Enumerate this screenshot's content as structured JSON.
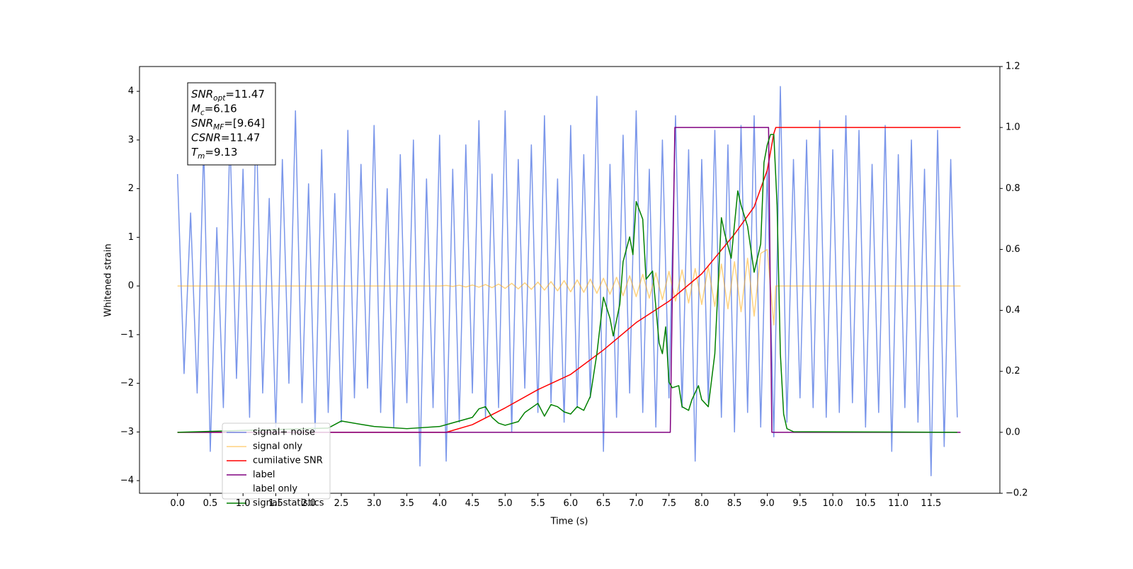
{
  "chart_data": {
    "type": "line",
    "xlabel": "Time (s)",
    "ylabel": "Whitened strain",
    "xlim": [
      -0.58,
      12.55
    ],
    "ylim": [
      -4.26,
      4.51
    ],
    "y2lim": [
      -0.2,
      1.2
    ],
    "xticks": [
      {
        "value": 0,
        "label": "0.0"
      },
      0.5,
      {
        "value": 1,
        "label": "1.0"
      },
      1.5,
      {
        "value": 2,
        "label": "2.0"
      },
      2.5,
      {
        "value": 3,
        "label": "3.0"
      },
      3.5,
      {
        "value": 4,
        "label": "4.0"
      },
      4.5,
      {
        "value": 5,
        "label": "5.0"
      },
      5.5,
      {
        "value": 6,
        "label": "6.0"
      },
      6.5,
      {
        "value": 7,
        "label": "7.0"
      },
      7.5,
      {
        "value": 8,
        "label": "8.0"
      },
      8.5,
      {
        "value": 9,
        "label": "9.0"
      },
      9.5,
      {
        "value": 10,
        "label": "10.0"
      },
      10.5,
      {
        "value": 11,
        "label": "11.0"
      },
      11.5
    ],
    "yticks": [
      {
        "value": -4,
        "label": "−4"
      },
      {
        "value": -3,
        "label": "−3"
      },
      {
        "value": -2,
        "label": "−2"
      },
      {
        "value": -1,
        "label": "−1"
      },
      0,
      1,
      2,
      3,
      4
    ],
    "y2ticks": [
      {
        "value": -0.2,
        "label": "−0.2"
      },
      {
        "value": 0,
        "label": "0.0"
      },
      0.2,
      0.4,
      0.6,
      0.8,
      {
        "value": 1,
        "label": "1.0"
      },
      1.2
    ],
    "legend": "lower left",
    "annotation": [
      {
        "symbol": "SNR",
        "sub": "opt",
        "text": "=11.47"
      },
      {
        "symbol": "M",
        "sub": "c",
        "text": "=6.16"
      },
      {
        "symbol": "SNR",
        "sub": "MF",
        "text": "=[9.64]"
      },
      {
        "symbol": "CSNR",
        "text": "=11.47"
      },
      {
        "symbol": "T",
        "sub": "m",
        "text": "=9.13"
      }
    ],
    "series": [
      {
        "name": "signal+ noise",
        "color": "#4169e1",
        "alpha": 0.7,
        "x": [
          0,
          0.1,
          0.2,
          0.3,
          0.4,
          0.5,
          0.6,
          0.7,
          0.8,
          0.9,
          1,
          1.1,
          1.2,
          1.3,
          1.4,
          1.5,
          1.6,
          1.7,
          1.8,
          1.9,
          2,
          2.1,
          2.2,
          2.3,
          2.4,
          2.5,
          2.6,
          2.7,
          2.8,
          2.9,
          3,
          3.1,
          3.2,
          3.3,
          3.4,
          3.5,
          3.6,
          3.7,
          3.8,
          3.9,
          4,
          4.1,
          4.2,
          4.3,
          4.4,
          4.5,
          4.6,
          4.7,
          4.8,
          4.9,
          5,
          5.1,
          5.2,
          5.3,
          5.4,
          5.5,
          5.6,
          5.7,
          5.8,
          5.9,
          6,
          6.1,
          6.2,
          6.3,
          6.4,
          6.5,
          6.6,
          6.7,
          6.8,
          6.9,
          7,
          7.1,
          7.2,
          7.3,
          7.4,
          7.5,
          7.6,
          7.7,
          7.8,
          7.9,
          8,
          8.1,
          8.2,
          8.3,
          8.4,
          8.5,
          8.6,
          8.7,
          8.8,
          8.9,
          9,
          9.1,
          9.2,
          9.3,
          9.4,
          9.5,
          9.6,
          9.7,
          9.8,
          9.9,
          10,
          10.1,
          10.2,
          10.3,
          10.4,
          10.5,
          10.6,
          10.7,
          10.8,
          10.9,
          11,
          11.1,
          11.2,
          11.3,
          11.4,
          11.5,
          11.6,
          11.7,
          11.8,
          11.9
        ],
        "values": [
          2.3,
          -1.8,
          1.5,
          -2.2,
          2.9,
          -3.4,
          1.2,
          -2.5,
          3.1,
          -1.9,
          2.4,
          -2.7,
          3.5,
          -2.2,
          1.8,
          -2.9,
          2.6,
          -2.0,
          3.6,
          -2.4,
          2.1,
          -3.0,
          2.8,
          -2.6,
          1.9,
          -2.8,
          3.2,
          -2.3,
          2.5,
          -2.1,
          3.3,
          -2.6,
          2.0,
          -2.9,
          2.7,
          -2.4,
          3.0,
          -3.7,
          2.2,
          -2.5,
          3.1,
          -3.6,
          2.4,
          -2.8,
          2.9,
          -2.2,
          3.4,
          -2.7,
          2.3,
          -2.5,
          3.6,
          -3.0,
          2.6,
          -2.1,
          2.9,
          -2.6,
          3.5,
          -2.4,
          2.2,
          -2.8,
          3.3,
          -2.5,
          2.7,
          -2.3,
          3.9,
          -3.4,
          2.5,
          -2.7,
          3.1,
          -2.2,
          3.6,
          -2.6,
          2.4,
          -2.9,
          3.0,
          -2.3,
          3.5,
          -2.5,
          2.8,
          -3.6,
          2.6,
          -2.4,
          3.2,
          -2.7,
          2.9,
          -3.0,
          3.3,
          -2.6,
          3.5,
          -2.9,
          2.4,
          -3.1,
          4.1,
          -2.8,
          2.6,
          -2.3,
          3.0,
          -2.5,
          3.4,
          -2.7,
          2.8,
          -2.6,
          3.5,
          -2.4,
          3.2,
          -2.9,
          2.5,
          -2.6,
          3.3,
          -3.4,
          2.7,
          -2.5,
          3.0,
          -2.8,
          2.4,
          -3.9,
          3.2,
          -3.3,
          2.6,
          -2.7
        ]
      },
      {
        "name": "signal only",
        "color": "#ffa500",
        "alpha": 0.5,
        "x": [
          0,
          4,
          4.1,
          4.2,
          4.3,
          4.4,
          4.5,
          4.6,
          4.7,
          4.8,
          4.9,
          5,
          5.1,
          5.2,
          5.3,
          5.4,
          5.5,
          5.6,
          5.7,
          5.8,
          5.9,
          6,
          6.1,
          6.2,
          6.3,
          6.4,
          6.5,
          6.6,
          6.7,
          6.8,
          6.9,
          7,
          7.1,
          7.2,
          7.3,
          7.4,
          7.5,
          7.6,
          7.7,
          7.8,
          7.9,
          8,
          8.1,
          8.2,
          8.3,
          8.4,
          8.5,
          8.6,
          8.7,
          8.8,
          8.9,
          9,
          9.1,
          9.13,
          11.95
        ],
        "values": [
          0,
          0,
          0.01,
          -0.01,
          0.015,
          -0.02,
          0.02,
          -0.025,
          0.03,
          -0.035,
          0.04,
          -0.05,
          0.055,
          -0.06,
          0.065,
          -0.07,
          0.08,
          -0.085,
          0.09,
          -0.1,
          0.11,
          -0.12,
          0.125,
          -0.13,
          0.14,
          -0.15,
          0.16,
          -0.17,
          0.18,
          -0.2,
          0.21,
          -0.22,
          0.24,
          -0.25,
          0.27,
          -0.28,
          0.3,
          -0.31,
          0.33,
          -0.35,
          0.36,
          -0.38,
          0.4,
          -0.42,
          0.45,
          -0.47,
          0.5,
          -0.53,
          0.57,
          -0.62,
          0.67,
          0.75,
          -0.8,
          0,
          0
        ]
      },
      {
        "name": "cumilative SNR",
        "color": "#ff0000",
        "axis": "y2",
        "x": [
          0,
          4.1,
          4.5,
          5,
          5.5,
          6,
          6.5,
          7,
          7.5,
          8,
          8.5,
          8.8,
          9,
          9.1,
          9.13,
          11.95
        ],
        "values": [
          0,
          0,
          0.025,
          0.08,
          0.14,
          0.19,
          0.27,
          0.36,
          0.43,
          0.52,
          0.65,
          0.74,
          0.86,
          0.98,
          1,
          1
        ]
      },
      {
        "name": "label",
        "color": "#800080",
        "axis": "y2",
        "x": [
          0,
          7.52,
          7.59,
          9.02,
          9.07,
          11.95
        ],
        "values": [
          0,
          0,
          1,
          1,
          0,
          0
        ]
      },
      {
        "name": "label only",
        "color": "#ffffff",
        "axis": "y2",
        "x": [],
        "values": []
      },
      {
        "name": "signal statistics",
        "color": "#008000",
        "axis": "y2",
        "x": [
          0,
          2.3,
          2.5,
          2.8,
          3,
          3.5,
          4,
          4.5,
          4.6,
          4.7,
          4.8,
          4.9,
          5,
          5.2,
          5.3,
          5.5,
          5.6,
          5.7,
          5.8,
          5.9,
          6,
          6.1,
          6.2,
          6.3,
          6.4,
          6.5,
          6.6,
          6.65,
          6.75,
          6.8,
          6.9,
          6.95,
          7,
          7.1,
          7.15,
          7.25,
          7.35,
          7.4,
          7.45,
          7.5,
          7.55,
          7.65,
          7.7,
          7.8,
          7.85,
          7.95,
          8,
          8.1,
          8.2,
          8.3,
          8.35,
          8.45,
          8.55,
          8.6,
          8.7,
          8.8,
          8.9,
          8.95,
          9,
          9.05,
          9.1,
          9.15,
          9.2,
          9.25,
          9.3,
          9.4,
          11.9
        ],
        "values": [
          0,
          0.014,
          0.037,
          0.026,
          0.019,
          0.012,
          0.019,
          0.049,
          0.077,
          0.084,
          0.049,
          0.03,
          0.023,
          0.035,
          0.065,
          0.095,
          0.053,
          0.091,
          0.084,
          0.067,
          0.06,
          0.084,
          0.072,
          0.118,
          0.258,
          0.443,
          0.374,
          0.316,
          0.42,
          0.56,
          0.641,
          0.583,
          0.757,
          0.699,
          0.502,
          0.529,
          0.293,
          0.258,
          0.346,
          0.165,
          0.146,
          0.153,
          0.084,
          0.072,
          0.107,
          0.153,
          0.107,
          0.084,
          0.258,
          0.704,
          0.652,
          0.571,
          0.792,
          0.745,
          0.676,
          0.525,
          0.618,
          0.885,
          0.943,
          0.977,
          0.977,
          0.745,
          0.258,
          0.06,
          0.012,
          0.002,
          0
        ]
      }
    ]
  }
}
